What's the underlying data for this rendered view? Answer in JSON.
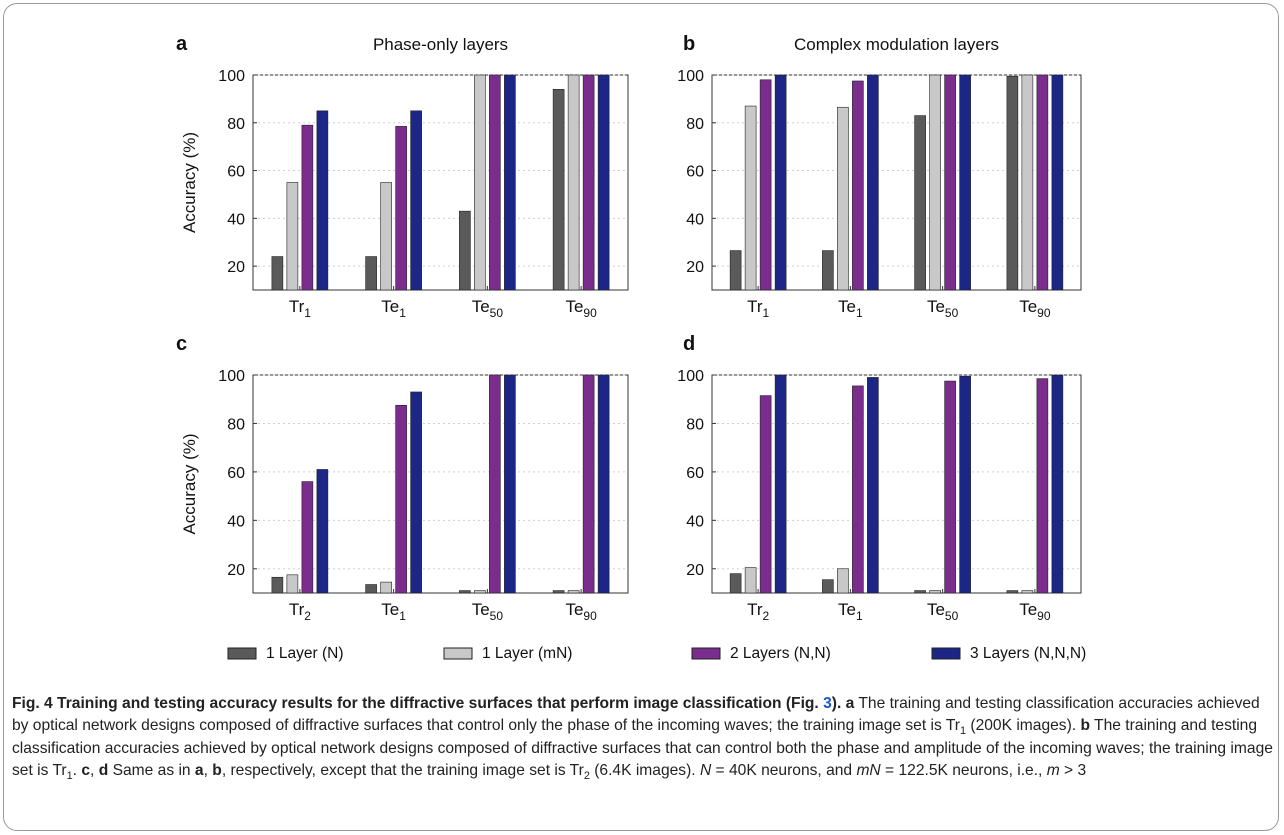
{
  "colors": {
    "one_layer_n": "#5a5a5a",
    "one_layer_mn": "#c8c8c8",
    "two_layers": "#7a2d8c",
    "three_layers": "#1c2686",
    "ref_link": "#1a56c8",
    "frame": "#9a9a9a"
  },
  "legend": {
    "items": [
      {
        "label": "1 Layer (N)",
        "color": "#5a5a5a"
      },
      {
        "label": "1 Layer (mN)",
        "color": "#c8c8c8"
      },
      {
        "label": "2 Layers (N,N)",
        "color": "#7a2d8c"
      },
      {
        "label": "3 Layers (N,N,N)",
        "color": "#1c2686"
      }
    ]
  },
  "chart_data": [
    {
      "panel": "a",
      "type": "bar",
      "title": "Phase-only layers",
      "ylabel": "Accuracy (%)",
      "ylim": [
        10,
        100
      ],
      "yticks": [
        20,
        40,
        60,
        80,
        100
      ],
      "categories": [
        {
          "base": "Tr",
          "sub": "1"
        },
        {
          "base": "Te",
          "sub": "1"
        },
        {
          "base": "Te",
          "sub": "50"
        },
        {
          "base": "Te",
          "sub": "90"
        }
      ],
      "series": [
        {
          "name": "1 Layer (N)",
          "values": [
            24,
            24,
            43,
            94
          ]
        },
        {
          "name": "1 Layer (mN)",
          "values": [
            55,
            55,
            100,
            100
          ]
        },
        {
          "name": "2 Layers (N,N)",
          "values": [
            79,
            78.5,
            100,
            100
          ]
        },
        {
          "name": "3 Layers (N,N,N)",
          "values": [
            85,
            85,
            100,
            100
          ]
        }
      ],
      "grid": true
    },
    {
      "panel": "b",
      "type": "bar",
      "title": "Complex modulation layers",
      "ylabel": "",
      "ylim": [
        10,
        100
      ],
      "yticks": [
        20,
        40,
        60,
        80,
        100
      ],
      "categories": [
        {
          "base": "Tr",
          "sub": "1"
        },
        {
          "base": "Te",
          "sub": "1"
        },
        {
          "base": "Te",
          "sub": "50"
        },
        {
          "base": "Te",
          "sub": "90"
        }
      ],
      "series": [
        {
          "name": "1 Layer (N)",
          "values": [
            26.5,
            26.5,
            83,
            99.5
          ]
        },
        {
          "name": "1 Layer (mN)",
          "values": [
            87,
            86.5,
            100,
            100
          ]
        },
        {
          "name": "2 Layers (N,N)",
          "values": [
            98,
            97.5,
            100,
            100
          ]
        },
        {
          "name": "3 Layers (N,N,N)",
          "values": [
            100,
            100,
            100,
            100
          ]
        }
      ],
      "grid": true
    },
    {
      "panel": "c",
      "type": "bar",
      "title": "",
      "ylabel": "Accuracy (%)",
      "ylim": [
        10,
        100
      ],
      "yticks": [
        20,
        40,
        60,
        80,
        100
      ],
      "categories": [
        {
          "base": "Tr",
          "sub": "2"
        },
        {
          "base": "Te",
          "sub": "1"
        },
        {
          "base": "Te",
          "sub": "50"
        },
        {
          "base": "Te",
          "sub": "90"
        }
      ],
      "series": [
        {
          "name": "1 Layer (N)",
          "values": [
            16.5,
            13.5,
            11,
            11
          ]
        },
        {
          "name": "1 Layer (mN)",
          "values": [
            17.5,
            14.5,
            11,
            11
          ]
        },
        {
          "name": "2 Layers (N,N)",
          "values": [
            56,
            87.5,
            100,
            100
          ]
        },
        {
          "name": "3 Layers (N,N,N)",
          "values": [
            61,
            93,
            100,
            100
          ]
        }
      ],
      "grid": true
    },
    {
      "panel": "d",
      "type": "bar",
      "title": "",
      "ylabel": "",
      "ylim": [
        10,
        100
      ],
      "yticks": [
        20,
        40,
        60,
        80,
        100
      ],
      "categories": [
        {
          "base": "Tr",
          "sub": "2"
        },
        {
          "base": "Te",
          "sub": "1"
        },
        {
          "base": "Te",
          "sub": "50"
        },
        {
          "base": "Te",
          "sub": "90"
        }
      ],
      "series": [
        {
          "name": "1 Layer (N)",
          "values": [
            18,
            15.5,
            11,
            11
          ]
        },
        {
          "name": "1 Layer (mN)",
          "values": [
            20.5,
            20,
            11,
            11
          ]
        },
        {
          "name": "2 Layers (N,N)",
          "values": [
            91.5,
            95.5,
            97.5,
            98.5
          ]
        },
        {
          "name": "3 Layers (N,N,N)",
          "values": [
            100,
            99,
            99.5,
            100
          ]
        }
      ],
      "grid": true
    }
  ],
  "caption": {
    "title_a": "Fig. 4 Training and testing accuracy results for the diffractive surfaces that perform image classification (Fig. ",
    "title_ref": "3",
    "title_b": ").",
    "lbl_a": "a",
    "text_a1": " The training and testing classification accuracies achieved by optical network designs composed of diffractive surfaces that control only the phase of the incoming waves; the training image set is Tr",
    "sub_1": "1",
    "text_a2": " (200K images).",
    "lbl_b": "b",
    "text_b1": " The training and testing classification accuracies achieved by optical network designs composed of diffractive surfaces that can control both the phase and amplitude of the incoming waves; the training image set is Tr",
    "sub_2": "1",
    "text_b2": ".",
    "lbl_c": "c",
    "sep_cd": ", ",
    "lbl_d": "d",
    "text_cd1": " Same as in ",
    "lbl_a2": "a",
    "sep_ab": ", ",
    "lbl_b2": "b",
    "text_cd2": ", respectively, except that the training image set is Tr",
    "sub_3": "2",
    "text_cd3": " (6.4K images). ",
    "n_sym": "N",
    "text_n": " = 40K neurons, and ",
    "mn_sym": "mN",
    "text_mn": " = 122.5K neurons, i.e., ",
    "m_sym": "m",
    "text_m": " > 3"
  }
}
